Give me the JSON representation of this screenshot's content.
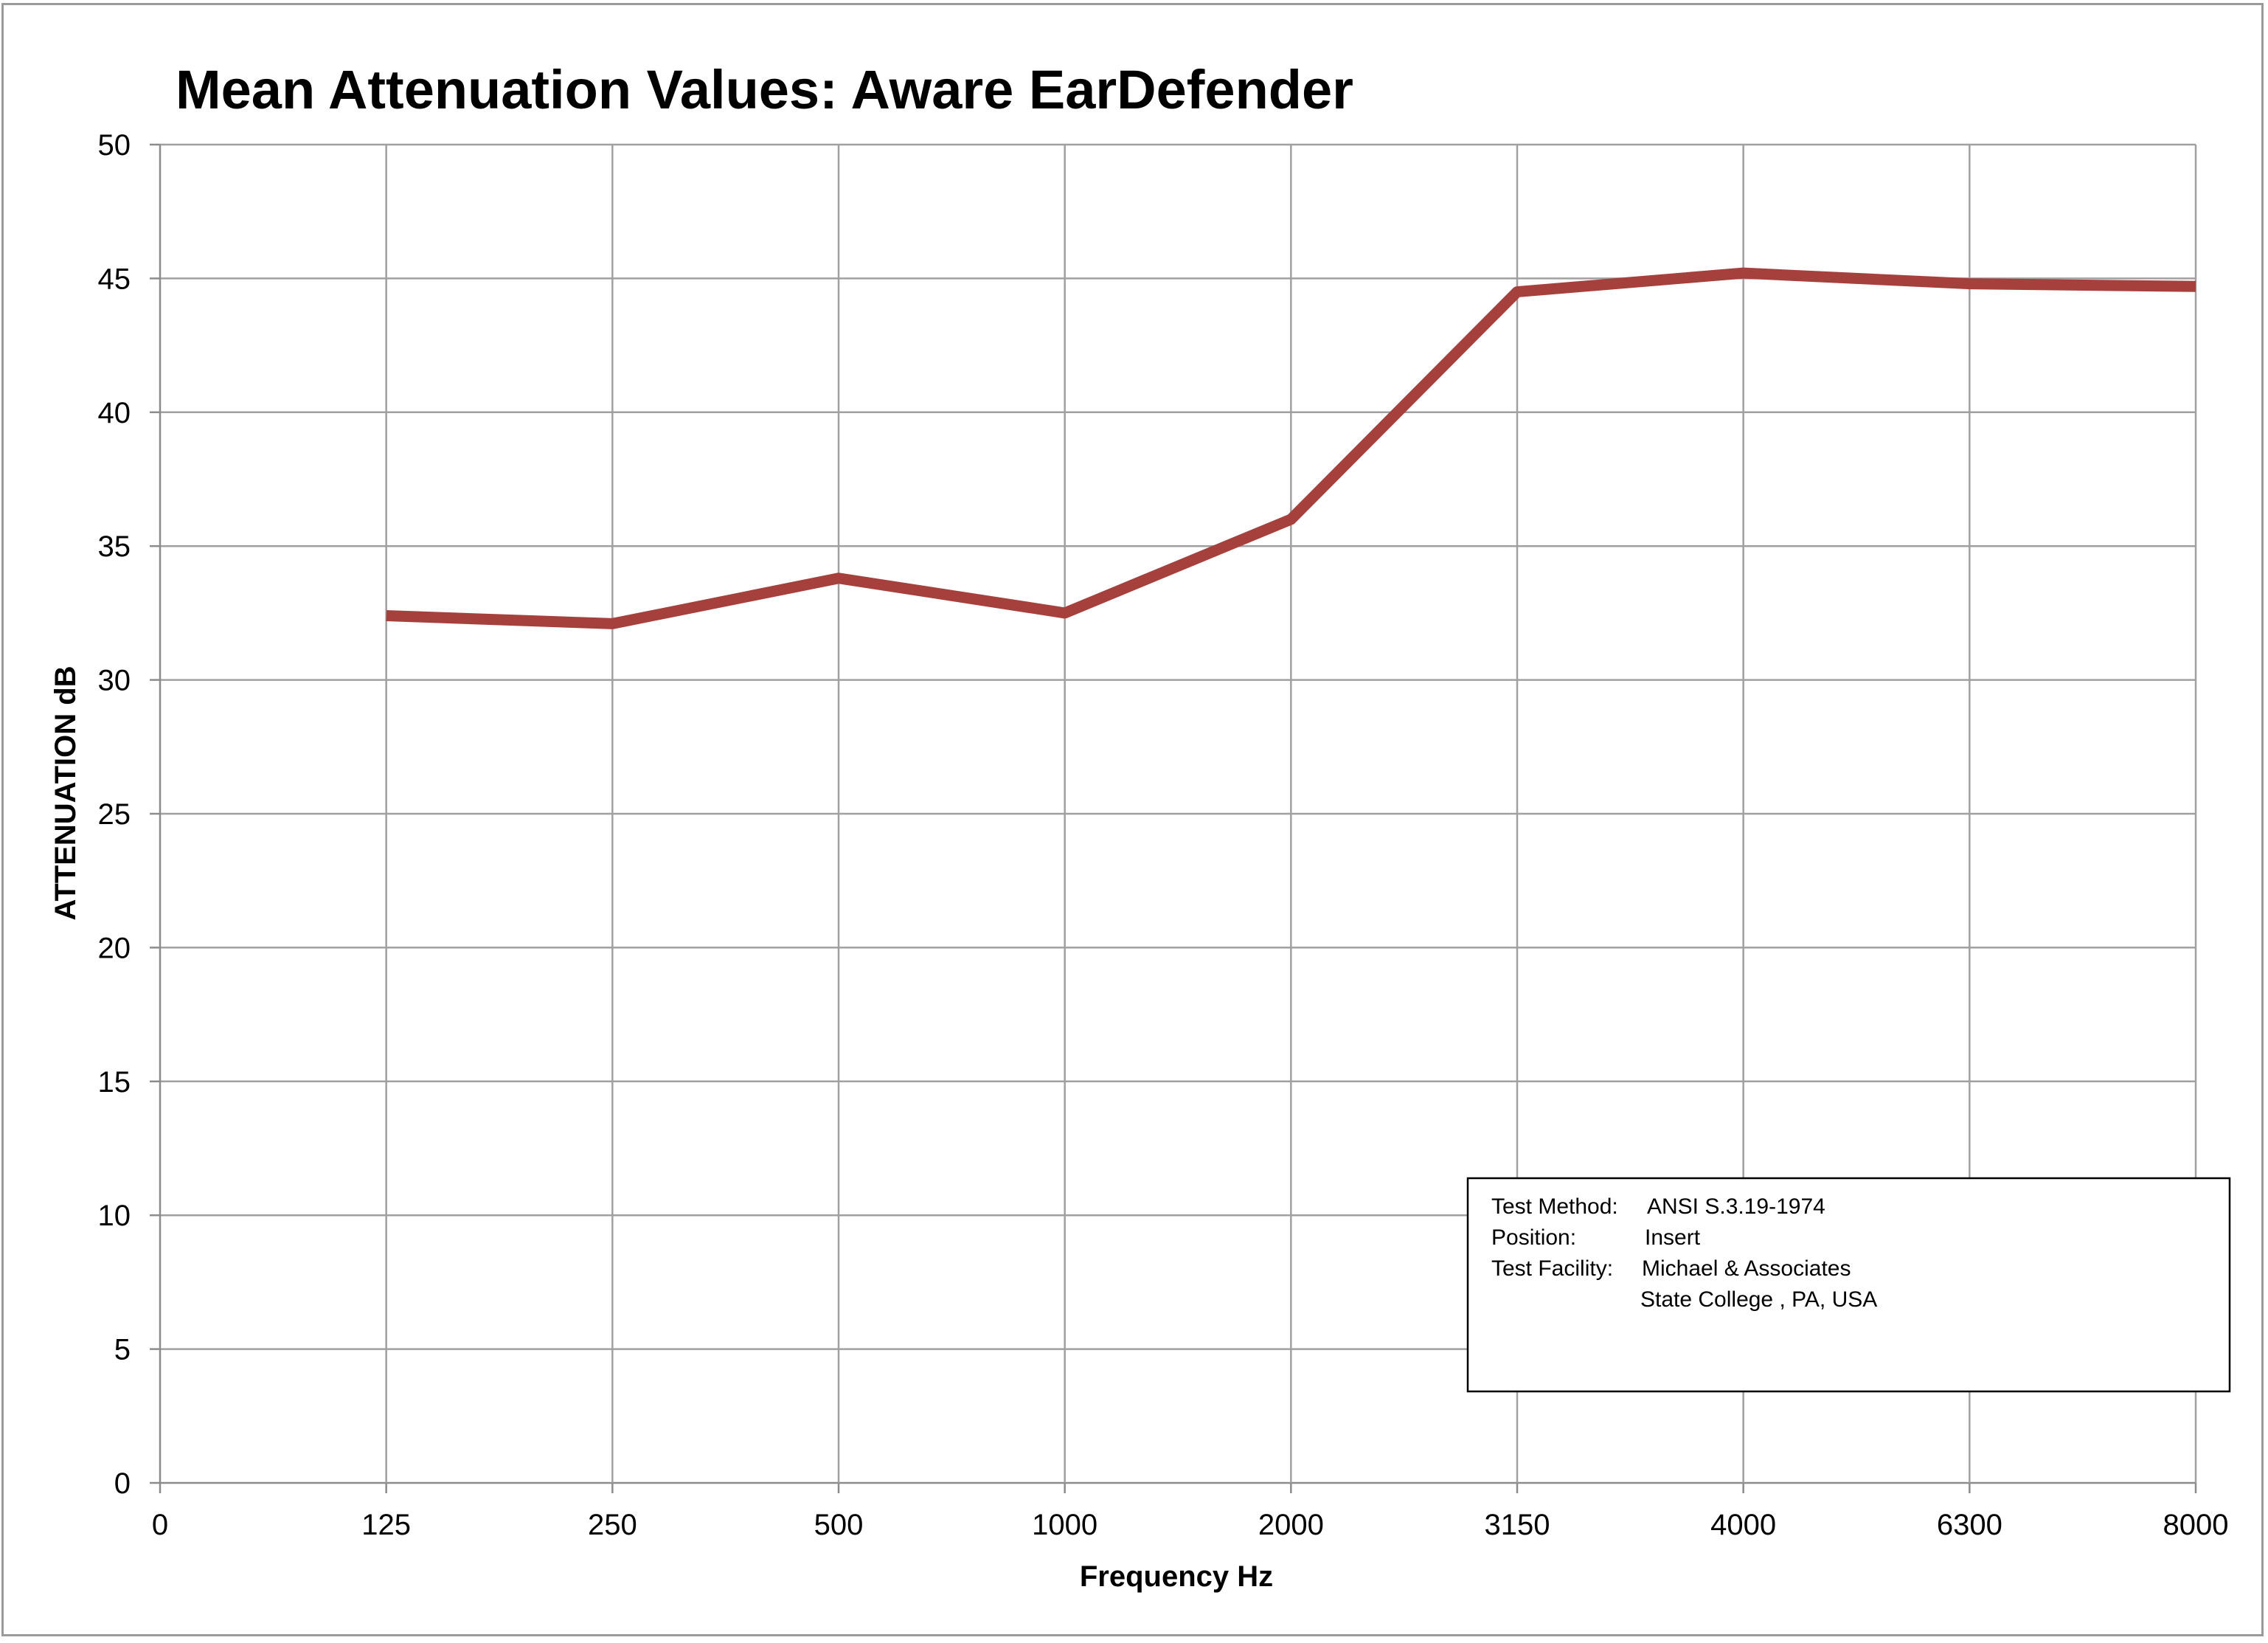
{
  "chart_data": {
    "type": "line",
    "title": "Mean Attenuation Values: Aware EarDefender",
    "xlabel": "Frequency Hz",
    "ylabel": "ATTENUATION dB",
    "x_tick_labels": [
      "0",
      "125",
      "250",
      "500",
      "1000",
      "2000",
      "3150",
      "4000",
      "6300",
      "8000"
    ],
    "categories": [
      "125",
      "250",
      "500",
      "1000",
      "2000",
      "3150",
      "4000",
      "6300",
      "8000"
    ],
    "series": [
      {
        "values": [
          32.4,
          32.1,
          33.8,
          32.5,
          36.0,
          44.5,
          45.2,
          44.8,
          44.7
        ],
        "color": "#a6403d"
      }
    ],
    "ylim": [
      0,
      50
    ],
    "y_ticks": [
      0,
      5,
      10,
      15,
      20,
      25,
      30,
      35,
      40,
      45,
      50
    ],
    "grid": true,
    "legend": "none",
    "info_box": {
      "placement": "bottom-right",
      "lines": [
        {
          "label": "Test Method:",
          "value": "ANSI S.3.19-1974"
        },
        {
          "label": "Position:",
          "value": "Insert"
        },
        {
          "label": "Test Facility:",
          "value": "Michael & Associates"
        },
        {
          "label": "",
          "value": "State College , PA, USA"
        }
      ]
    },
    "gridline_color": "#a0a0a0",
    "axis_color": "#8c8c8c"
  }
}
